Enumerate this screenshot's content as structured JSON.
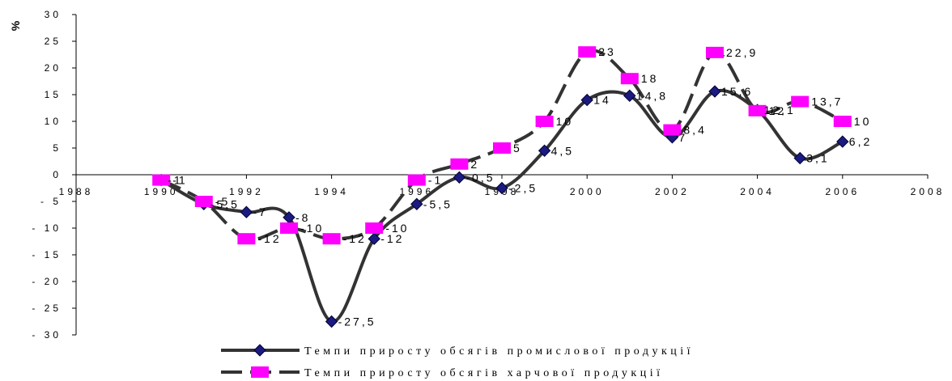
{
  "chart_data": {
    "type": "line",
    "ylabel": "%",
    "x": [
      1990,
      1991,
      1992,
      1993,
      1994,
      1995,
      1996,
      1997,
      1998,
      1999,
      2000,
      2001,
      2002,
      2003,
      2004,
      2005,
      2006
    ],
    "xlim": [
      1988,
      2008
    ],
    "ylim": [
      -30,
      30
    ],
    "xticks": [
      1988,
      1990,
      1992,
      1994,
      1996,
      1998,
      2000,
      2002,
      2004,
      2006,
      2008
    ],
    "yticks": [
      30,
      25,
      20,
      15,
      10,
      5,
      0,
      -5,
      -10,
      -15,
      -20,
      -25,
      -30
    ],
    "grid": false,
    "legend_position": "bottom",
    "series": [
      {
        "name": "Темпи приросту обсягів промислової продукції",
        "marker": "diamond",
        "line_style": "solid",
        "line_color": "#333333",
        "marker_color": "#1a1a80",
        "values": [
          -1,
          -5.5,
          -7,
          -8,
          -27.5,
          -12,
          -5.5,
          -0.5,
          -2.5,
          4.5,
          14,
          14.8,
          7,
          15.6,
          12.1,
          3.1,
          6.2
        ],
        "labels": [
          "-1",
          "-5,5",
          "-7",
          "-8",
          "-27,5",
          "-12",
          "-5,5",
          "-0,5",
          "-2,5",
          "4,5",
          "14",
          "14,8",
          "7",
          "15,6",
          "12,1",
          "3,1",
          "6,2"
        ]
      },
      {
        "name": "Темпи приросту обсягів харчової продукції",
        "marker": "square",
        "line_style": "dashed",
        "line_color": "#333333",
        "marker_color": "#ff00ff",
        "values": [
          -1,
          -5,
          -12,
          -10,
          -12,
          -10,
          -1,
          2,
          5,
          10,
          23,
          18,
          8.4,
          22.9,
          12,
          13.7,
          10
        ],
        "labels": [
          "-1",
          "-5",
          "-12",
          "-10",
          "-12",
          "-10",
          "-1",
          "2",
          "5",
          "10",
          "23",
          "18",
          "8,4",
          "22,9",
          "12",
          "13,7",
          "10"
        ]
      }
    ]
  }
}
